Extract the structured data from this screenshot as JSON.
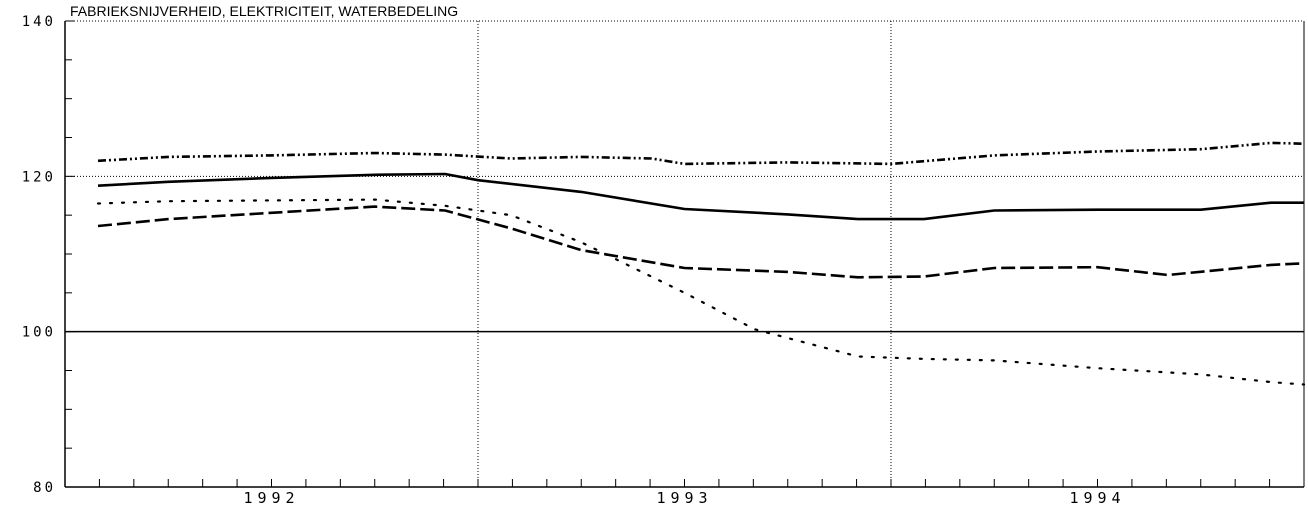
{
  "chart_data": {
    "type": "line",
    "title": "FABRIEKSNIJVERHEID, ELEKTRICITEIT, WATERBEDELING",
    "xlabel": "",
    "ylabel": "",
    "ylim": [
      80,
      140
    ],
    "yticks": [
      "80",
      "100",
      "120",
      "140"
    ],
    "xticks": [
      "1992",
      "1993",
      "1994"
    ],
    "x_range": [
      1991.5,
      1994.5
    ],
    "reference_line": 100,
    "grid": "dotted lines at y=120 and at year boundaries",
    "series": [
      {
        "style": "dash-dot",
        "x": [
          1991.58,
          1991.75,
          1992.0,
          1992.25,
          1992.42,
          1992.58,
          1992.75,
          1992.92,
          1993.0,
          1993.25,
          1993.5,
          1993.75,
          1994.0,
          1994.25,
          1994.42,
          1994.5
        ],
        "y": [
          122.0,
          122.5,
          122.7,
          123.0,
          122.8,
          122.3,
          122.5,
          122.3,
          121.6,
          121.8,
          121.6,
          122.7,
          123.2,
          123.5,
          124.3,
          124.2
        ]
      },
      {
        "style": "solid",
        "x": [
          1991.58,
          1991.75,
          1992.0,
          1992.25,
          1992.42,
          1992.5,
          1992.75,
          1993.0,
          1993.25,
          1993.42,
          1993.58,
          1993.75,
          1994.0,
          1994.25,
          1994.42,
          1994.5
        ],
        "y": [
          118.8,
          119.3,
          119.8,
          120.2,
          120.3,
          119.5,
          118.0,
          115.8,
          115.1,
          114.5,
          114.5,
          115.6,
          115.7,
          115.7,
          116.6,
          116.6
        ]
      },
      {
        "style": "dotted",
        "x": [
          1991.58,
          1991.75,
          1992.0,
          1992.25,
          1992.42,
          1992.58,
          1992.75,
          1993.0,
          1993.17,
          1993.42,
          1993.58,
          1993.75,
          1994.0,
          1994.25,
          1994.42,
          1994.5
        ],
        "y": [
          116.5,
          116.8,
          116.9,
          117.0,
          116.2,
          115.0,
          111.5,
          105.0,
          100.3,
          96.8,
          96.5,
          96.3,
          95.3,
          94.5,
          93.5,
          93.2
        ]
      },
      {
        "style": "long-dash",
        "x": [
          1991.58,
          1991.75,
          1992.0,
          1992.25,
          1992.42,
          1992.58,
          1992.75,
          1993.0,
          1993.25,
          1993.42,
          1993.58,
          1993.75,
          1994.0,
          1994.17,
          1994.42,
          1994.5
        ],
        "y": [
          113.6,
          114.5,
          115.3,
          116.1,
          115.6,
          113.3,
          110.5,
          108.2,
          107.7,
          107.0,
          107.1,
          108.2,
          108.3,
          107.3,
          108.6,
          108.8
        ]
      }
    ]
  }
}
